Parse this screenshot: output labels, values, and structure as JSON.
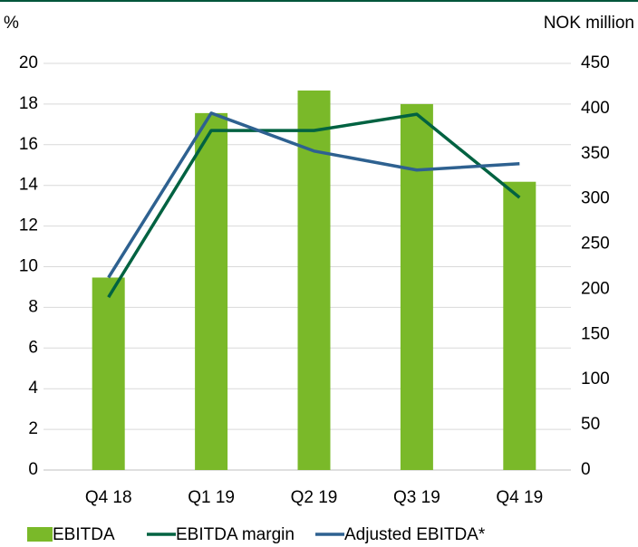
{
  "chart_data": {
    "type": "combo",
    "y_label": "%",
    "y2_label": "NOK million",
    "categories": [
      "Q4 18",
      "Q1 19",
      "Q2 19",
      "Q3 19",
      "Q4 19"
    ],
    "series": [
      {
        "name": "EBITDA",
        "type": "bar",
        "axis": "y2",
        "color": "#7ab929",
        "values": [
          213,
          395,
          420,
          405,
          319
        ]
      },
      {
        "name": "EBITDA margin",
        "type": "line",
        "axis": "y",
        "color": "#006241",
        "values": [
          8.5,
          16.7,
          16.7,
          17.5,
          13.4
        ]
      },
      {
        "name": "Adjusted EBITDA*",
        "type": "line",
        "axis": "y2",
        "color": "#2e6190",
        "values": [
          213,
          395,
          353,
          332,
          339
        ]
      }
    ],
    "ylim": [
      0,
      20
    ],
    "yticks": [
      0,
      2,
      4,
      6,
      8,
      10,
      12,
      14,
      16,
      18,
      20
    ],
    "y2lim": [
      0,
      450
    ],
    "y2ticks": [
      0,
      50,
      100,
      150,
      200,
      250,
      300,
      350,
      400,
      450
    ],
    "grid": true,
    "legend": "bottom"
  }
}
